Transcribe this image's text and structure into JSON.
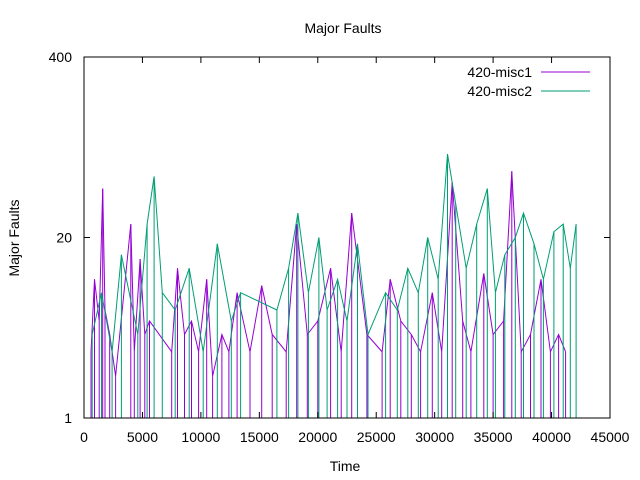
{
  "chart_data": {
    "type": "line",
    "title": "Major Faults",
    "xlabel": "Time",
    "ylabel": "Major Faults",
    "xlim": [
      0,
      45000
    ],
    "ylim": [
      1,
      400
    ],
    "yscale": "log",
    "x_ticks": [
      "0",
      "5000",
      "10000",
      "15000",
      "20000",
      "25000",
      "30000",
      "35000",
      "40000",
      "45000"
    ],
    "x_tick_values": [
      0,
      5000,
      10000,
      15000,
      20000,
      25000,
      30000,
      35000,
      40000,
      45000
    ],
    "y_ticks": [
      "1",
      "20",
      "400"
    ],
    "y_tick_values": [
      1,
      20,
      400
    ],
    "legend_position": "top-right",
    "grid": false,
    "series": [
      {
        "name": "420-misc1",
        "color": "#9400d3",
        "x": [
          600,
          900,
          1300,
          1600,
          1800,
          2200,
          2700,
          4000,
          4300,
          4800,
          5200,
          5600,
          7500,
          8000,
          8600,
          9200,
          9800,
          10500,
          11000,
          11800,
          12400,
          13100,
          14200,
          15200,
          16100,
          17300,
          18200,
          19100,
          20000,
          21100,
          22000,
          22900,
          24200,
          25500,
          26200,
          27100,
          28000,
          28800,
          29800,
          30600,
          31500,
          32400,
          33100,
          34200,
          35000,
          35900,
          36600,
          37400,
          38200,
          39100,
          39900,
          40600,
          41200
        ],
        "y": [
          3,
          10,
          5,
          45,
          6,
          4,
          2,
          25,
          3,
          14,
          4,
          5,
          3,
          12,
          4,
          5,
          3,
          10,
          2,
          4,
          3,
          8,
          3,
          9,
          4,
          3,
          25,
          4,
          5,
          12,
          3,
          30,
          4,
          3,
          10,
          5,
          4,
          3,
          8,
          3,
          50,
          5,
          3,
          11,
          4,
          5,
          60,
          3,
          4,
          10,
          3,
          4,
          3
        ]
      },
      {
        "name": "420-misc2",
        "color": "#009e73",
        "x": [
          700,
          1500,
          2400,
          3200,
          4600,
          5400,
          6000,
          6700,
          7800,
          9000,
          10200,
          11400,
          12600,
          13400,
          16500,
          17500,
          18300,
          19200,
          20100,
          20800,
          21700,
          22500,
          23400,
          24300,
          25800,
          26800,
          27700,
          28600,
          29400,
          30300,
          31100,
          31800,
          32700,
          33600,
          34500,
          35200,
          36000,
          36900,
          37600,
          38500,
          39300,
          40200,
          41000,
          41600,
          42100
        ],
        "y": [
          4,
          8,
          3,
          15,
          4,
          25,
          55,
          8,
          6,
          12,
          3,
          18,
          5,
          8,
          6,
          12,
          30,
          8,
          20,
          6,
          10,
          5,
          18,
          4,
          8,
          6,
          12,
          8,
          20,
          10,
          80,
          35,
          12,
          25,
          45,
          8,
          15,
          20,
          30,
          18,
          10,
          22,
          25,
          12,
          25
        ]
      }
    ]
  }
}
